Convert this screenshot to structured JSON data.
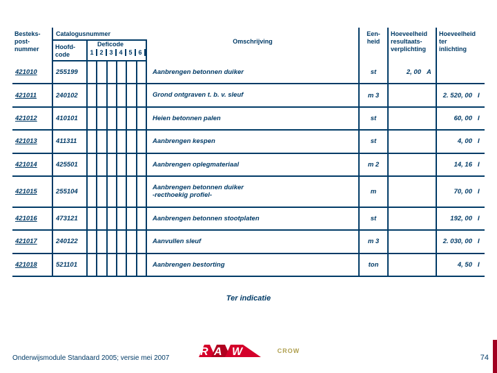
{
  "colors": {
    "text": "#003a66",
    "rule": "#003a66",
    "accent_red": "#d4002a",
    "accent_dark": "#7a0018",
    "crow_gold": "#b0a050"
  },
  "header": {
    "bestek": "Besteks-\npost-\nnummer",
    "catalogus": "Catalogusnummer",
    "hoofdcode": "Hoofd-\ncode",
    "deficode": "Deficode",
    "defi_digits": [
      "1",
      "2",
      "3",
      "4",
      "5",
      "6"
    ],
    "omschrijving": "Omschrijving",
    "eenheid": "Een-\nheid",
    "hres": "Hoeveelheid\nresultaats-\nverplichting",
    "hter": "Hoeveelheid\nter\ninlichting"
  },
  "rows": [
    {
      "bestek": "421010",
      "hoofd": "255199",
      "omsch": "Aanbrengen betonnen duiker",
      "eenheid": "st",
      "hres": "2, 00",
      "hres_code": "A",
      "hter": "",
      "hter_code": ""
    },
    {
      "bestek": "421011",
      "hoofd": "240102",
      "omsch": "Grond ontgraven t. b. v. sleuf",
      "eenheid": "m 3",
      "hres": "",
      "hres_code": "",
      "hter": "2. 520, 00",
      "hter_code": "I"
    },
    {
      "bestek": "421012",
      "hoofd": "410101",
      "omsch": "Heien betonnen palen",
      "eenheid": "st",
      "hres": "",
      "hres_code": "",
      "hter": "60, 00",
      "hter_code": "I"
    },
    {
      "bestek": "421013",
      "hoofd": "411311",
      "omsch": "Aanbrengen kespen",
      "eenheid": "st",
      "hres": "",
      "hres_code": "",
      "hter": "4, 00",
      "hter_code": "I"
    },
    {
      "bestek": "421014",
      "hoofd": "425501",
      "omsch": "Aanbrengen oplegmateriaal",
      "eenheid": "m 2",
      "hres": "",
      "hres_code": "",
      "hter": "14, 16",
      "hter_code": "I"
    },
    {
      "bestek": "421015",
      "hoofd": "255104",
      "omsch": "Aanbrengen betonnen duiker\n-recthoekig profiel-",
      "eenheid": "m",
      "hres": "",
      "hres_code": "",
      "hter": "70, 00",
      "hter_code": "I"
    },
    {
      "bestek": "421016",
      "hoofd": "473121",
      "omsch": "Aanbrengen betonnen stootplaten",
      "eenheid": "st",
      "hres": "",
      "hres_code": "",
      "hter": "192, 00",
      "hter_code": "I"
    },
    {
      "bestek": "421017",
      "hoofd": "240122",
      "omsch": "Aanvullen sleuf",
      "eenheid": "m 3",
      "hres": "",
      "hres_code": "",
      "hter": "2. 030, 00",
      "hter_code": "I"
    },
    {
      "bestek": "421018",
      "hoofd": "521101",
      "omsch": "Aanbrengen bestorting",
      "eenheid": "ton",
      "hres": "",
      "hres_code": "",
      "hter": "4, 50",
      "hter_code": "I"
    }
  ],
  "ter_indicatie": "Ter indicatie",
  "footer_left": "Onderwijsmodule Standaard 2005; versie mei 2007",
  "logo_text": "CROW",
  "page_number": "74"
}
